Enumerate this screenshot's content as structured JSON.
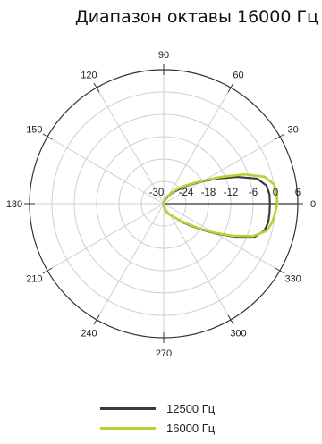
{
  "chart_data": {
    "type": "polar",
    "title": "Диапазон октавы 16000 Гц",
    "angle_ticks": [
      0,
      30,
      60,
      90,
      120,
      150,
      180,
      210,
      240,
      270,
      300,
      330
    ],
    "angle_tick_labels": [
      "0",
      "30",
      "60",
      "90",
      "120",
      "150",
      "180",
      "210",
      "240",
      "270",
      "300",
      "330"
    ],
    "radial_ticks": [
      -30,
      -24,
      -18,
      -12,
      -6,
      0,
      6
    ],
    "radial_tick_labels": [
      "-30",
      "-24",
      "-18",
      "-12",
      "-6",
      "0",
      "6"
    ],
    "rlim": [
      -30,
      6
    ],
    "grid": true,
    "legend_position": "bottom-center",
    "series": [
      {
        "name": "12500 Гц",
        "color": "#3a3a3a",
        "angles": [
          0,
          5,
          10,
          15,
          20,
          25,
          30,
          35,
          40,
          45,
          50,
          55,
          60,
          65,
          70,
          75,
          80,
          85,
          90,
          95,
          100,
          110,
          120,
          140,
          160,
          180,
          200,
          220,
          240,
          250,
          260,
          265,
          270,
          275,
          280,
          285,
          290,
          295,
          300,
          305,
          310,
          315,
          320,
          325,
          330,
          335,
          340,
          345,
          350,
          355,
          360
        ],
        "values": [
          -1.5,
          -1.5,
          -2,
          -4,
          -9,
          -14,
          -18,
          -21,
          -23,
          -25,
          -26,
          -27,
          -28,
          -28.5,
          -29,
          -29,
          -29.5,
          -29.5,
          -30,
          -30,
          -30,
          -30,
          -30,
          -30,
          -30,
          -30,
          -30,
          -30,
          -30,
          -30,
          -30,
          -30,
          -29.5,
          -29,
          -28.5,
          -28,
          -27.5,
          -27,
          -26.5,
          -26,
          -25,
          -23,
          -21,
          -18,
          -14,
          -9,
          -4,
          -2,
          -1.5,
          -1.5,
          -1.5
        ]
      },
      {
        "name": "16000 Гц",
        "color": "#b5d334",
        "angles": [
          0,
          5,
          10,
          15,
          20,
          25,
          30,
          35,
          40,
          45,
          50,
          55,
          60,
          65,
          70,
          75,
          80,
          85,
          90,
          95,
          100,
          110,
          120,
          140,
          160,
          180,
          200,
          220,
          240,
          250,
          260,
          265,
          270,
          275,
          280,
          285,
          290,
          295,
          300,
          305,
          310,
          315,
          320,
          325,
          330,
          335,
          340,
          345,
          350,
          355,
          360
        ],
        "values": [
          0.5,
          0.5,
          0,
          -2,
          -7,
          -13,
          -17.5,
          -20.5,
          -22.5,
          -24,
          -25.5,
          -26.5,
          -27.5,
          -28,
          -28.5,
          -29,
          -29.5,
          -29.5,
          -30,
          -30,
          -30,
          -30,
          -30,
          -30,
          -30,
          -30,
          -30,
          -30,
          -30,
          -30,
          -30,
          -30,
          -29.5,
          -29,
          -28.5,
          -28,
          -27.5,
          -27,
          -26.5,
          -26,
          -25,
          -23.5,
          -21.5,
          -18.5,
          -14.5,
          -9.5,
          -4.5,
          -1.5,
          -0.5,
          0,
          0.5
        ]
      }
    ]
  }
}
